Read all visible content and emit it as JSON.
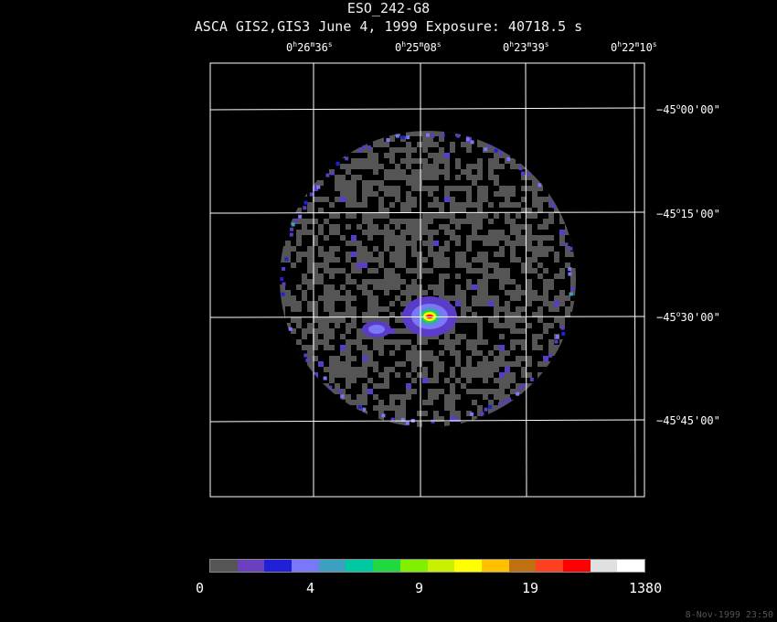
{
  "header": {
    "title": "ESO_242-G8",
    "subtitle": "ASCA GIS2,GIS3 June 4, 1999 Exposure: 40718.5 s"
  },
  "axes": {
    "ra_labels": [
      {
        "h": "0",
        "m": "26",
        "s": "36"
      },
      {
        "h": "0",
        "m": "25",
        "s": "08"
      },
      {
        "h": "0",
        "m": "23",
        "s": "39"
      },
      {
        "h": "0",
        "m": "22",
        "s": "10"
      }
    ],
    "dec_labels": [
      {
        "sign": "−",
        "deg": "45",
        "min": "00",
        "sec": "00"
      },
      {
        "sign": "−",
        "deg": "45",
        "min": "15",
        "sec": "00"
      },
      {
        "sign": "−",
        "deg": "45",
        "min": "30",
        "sec": "00"
      },
      {
        "sign": "−",
        "deg": "45",
        "min": "45",
        "sec": "00"
      }
    ]
  },
  "colorbar": {
    "labels": [
      "0",
      "4",
      "9",
      "19",
      "1380"
    ],
    "colors": [
      "#555555",
      "#6a3fc0",
      "#2020d8",
      "#7878f8",
      "#3ca0c0",
      "#00c8a0",
      "#20d840",
      "#80f000",
      "#c8f000",
      "#ffff00",
      "#ffc000",
      "#c07010",
      "#ff4020",
      "#ff0000",
      "#e0e0e0",
      "#ffffff"
    ]
  },
  "image": {
    "background_color": "#555555",
    "source_color": "#ff0000"
  },
  "footer": {
    "timestamp": "8-Nov-1999 23:50"
  }
}
